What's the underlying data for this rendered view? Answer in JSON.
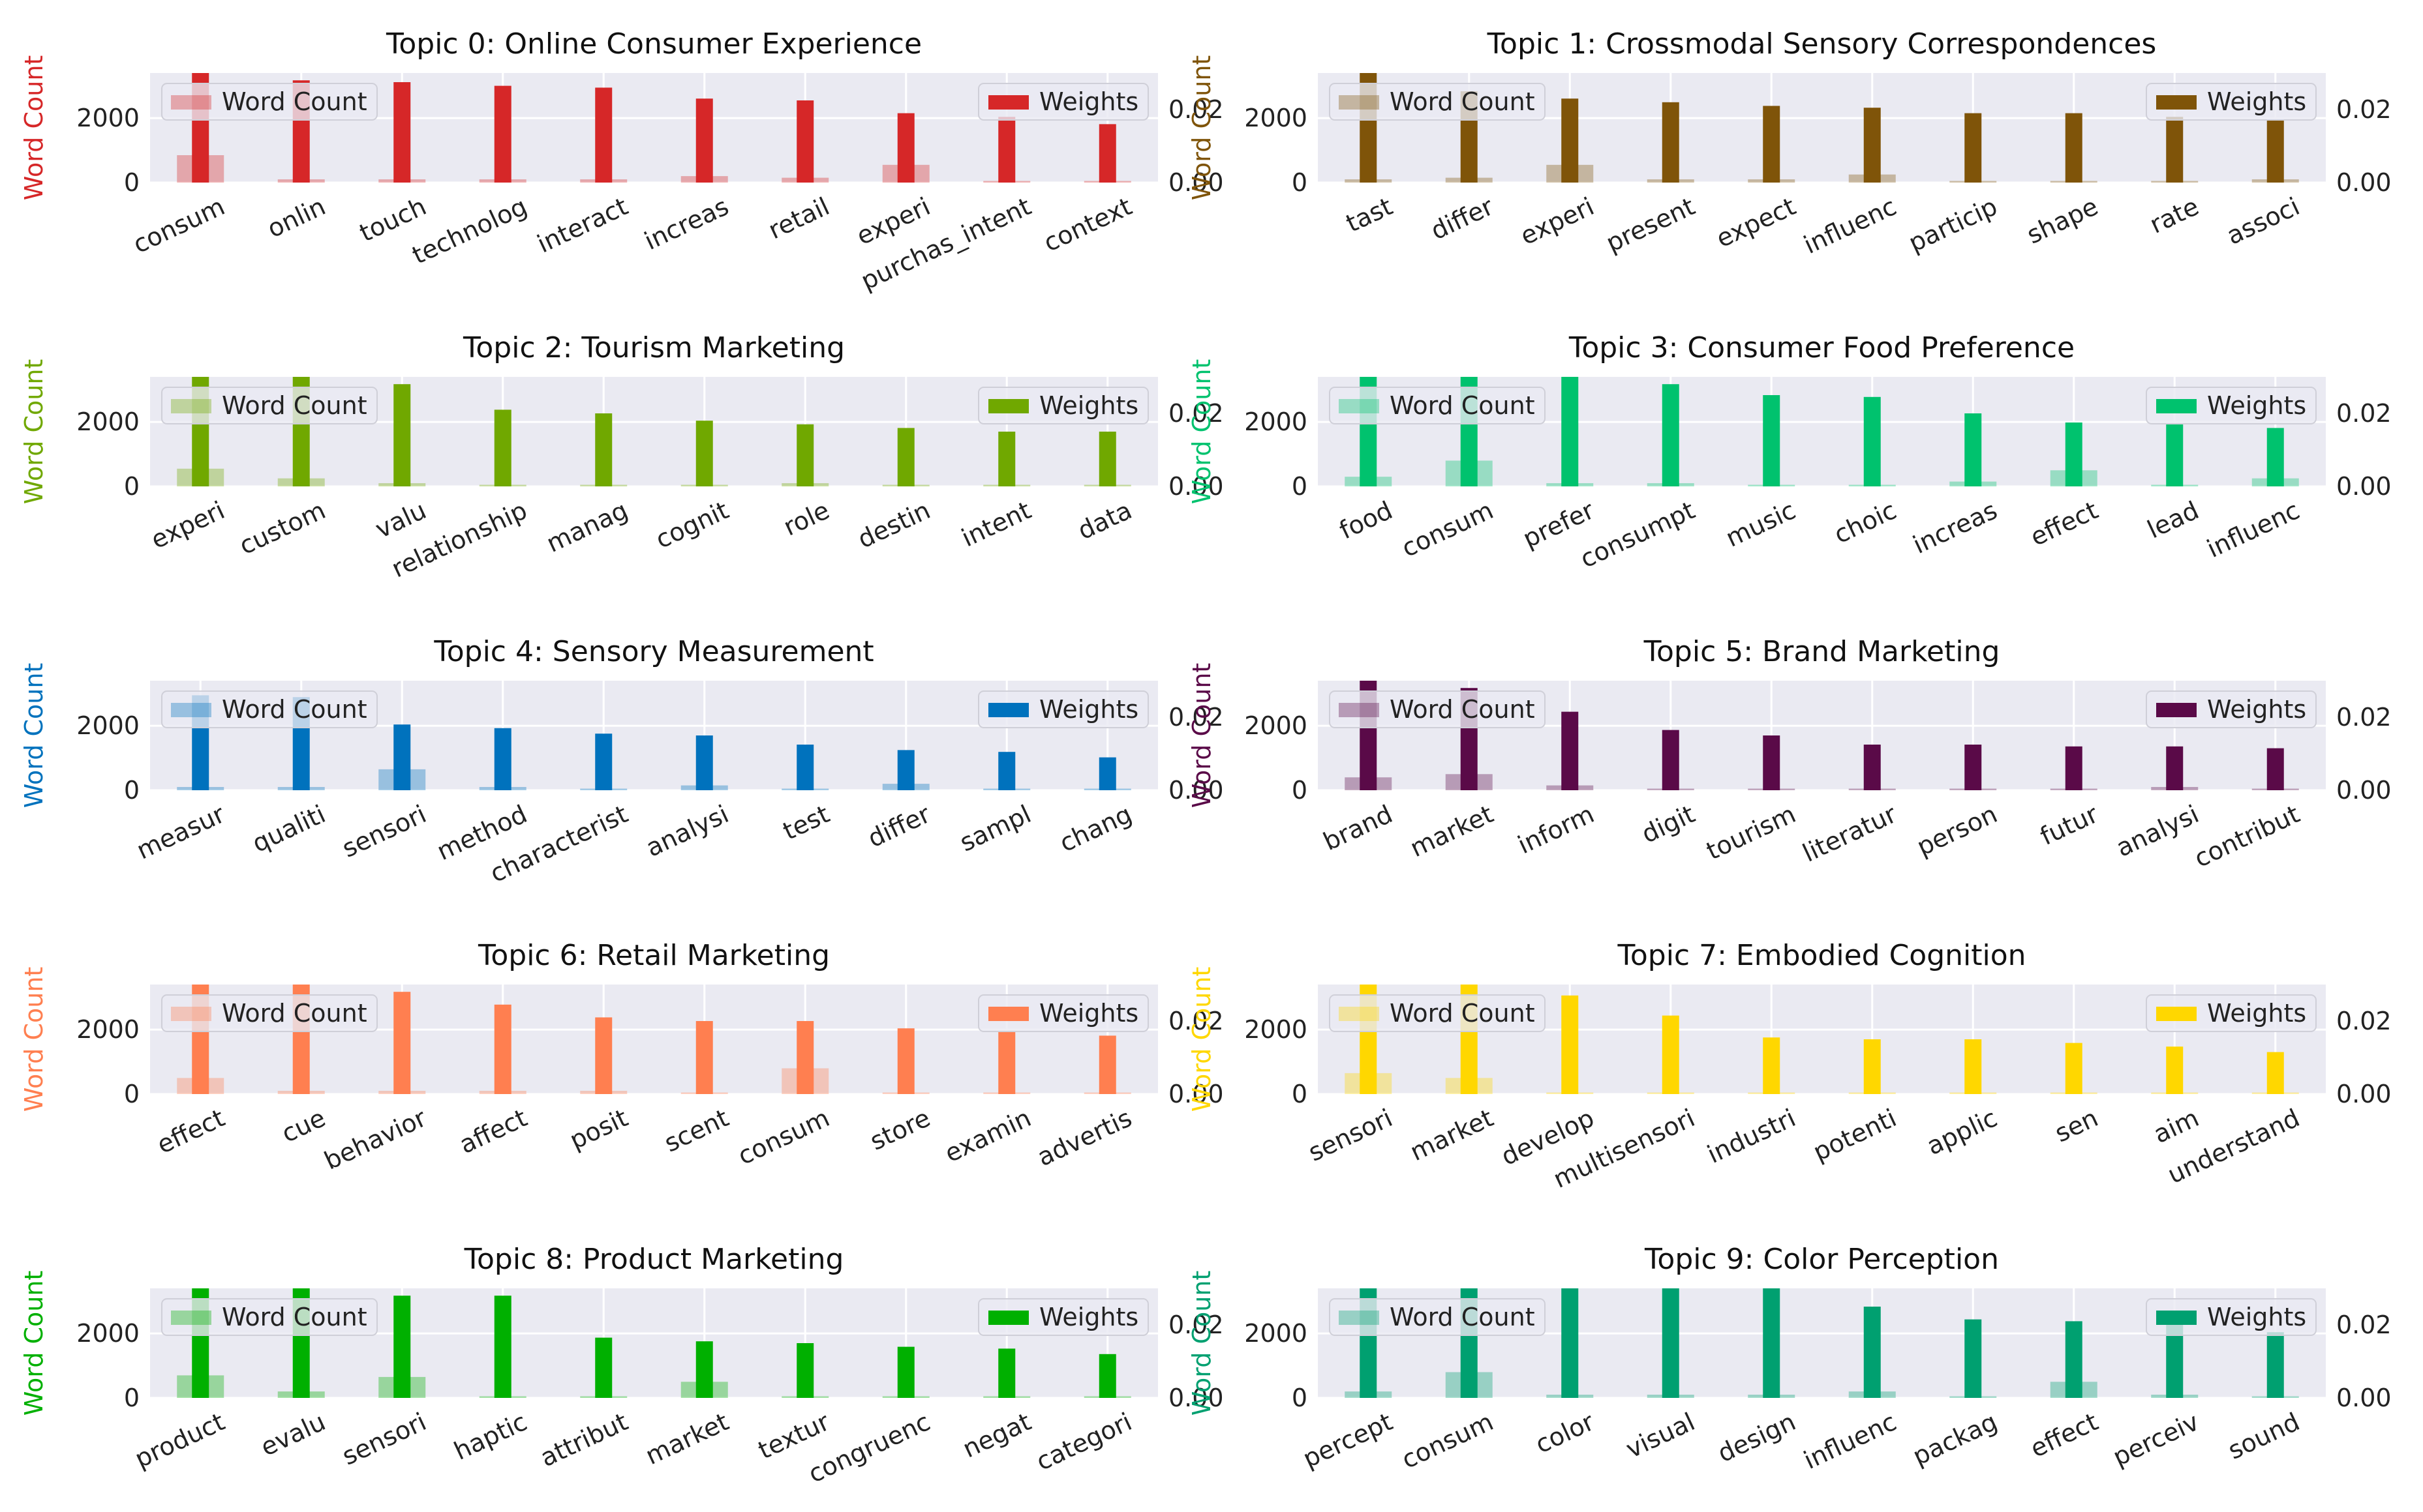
{
  "figure": {
    "left_axis_label": "Word Count",
    "right_axis_label_ticks": [
      "0.00",
      "0.02"
    ],
    "left_ticks": [
      "0",
      "2000"
    ]
  },
  "legend": {
    "word_count": "Word Count",
    "weights": "Weights"
  },
  "chart_data": [
    {
      "type": "bar",
      "title": "Topic 0: Online Consumer Experience",
      "color": "#d62728",
      "categories": [
        "consum",
        "onlin",
        "touch",
        "technolog",
        "interact",
        "increas",
        "retail",
        "experi",
        "purchas_intent",
        "context"
      ],
      "series": [
        {
          "name": "Word Count",
          "axis": "left",
          "values": [
            850,
            100,
            100,
            100,
            100,
            200,
            150,
            550,
            50,
            50
          ]
        },
        {
          "name": "Weights",
          "axis": "right",
          "values": [
            0.03,
            0.028,
            0.0275,
            0.0265,
            0.026,
            0.023,
            0.0225,
            0.019,
            0.018,
            0.016
          ]
        }
      ],
      "ylim_left": [
        0,
        3400
      ],
      "ylim_right": [
        0,
        0.03
      ],
      "yticks_left": [
        0,
        2000
      ],
      "yticks_right": [
        0.0,
        0.02
      ],
      "ylabel": "Word Count",
      "legend": [
        "top-left",
        "top-right"
      ],
      "grid": true
    },
    {
      "type": "bar",
      "title": "Topic 1: Crossmodal Sensory Correspondences",
      "color": "#7f5409",
      "categories": [
        "tast",
        "differ",
        "experi",
        "present",
        "expect",
        "influenc",
        "particip",
        "shape",
        "rate",
        "associ"
      ],
      "series": [
        {
          "name": "Word Count",
          "axis": "left",
          "values": [
            100,
            150,
            550,
            100,
            100,
            250,
            50,
            50,
            50,
            100
          ]
        },
        {
          "name": "Weights",
          "axis": "right",
          "values": [
            0.03,
            0.025,
            0.023,
            0.022,
            0.021,
            0.0205,
            0.019,
            0.019,
            0.018,
            0.017
          ]
        }
      ],
      "ylim_left": [
        0,
        3400
      ],
      "ylim_right": [
        0,
        0.03
      ],
      "yticks_left": [
        0,
        2000
      ],
      "yticks_right": [
        0.0,
        0.02
      ],
      "ylabel": "Word Count",
      "legend": [
        "top-left",
        "top-right"
      ],
      "grid": true
    },
    {
      "type": "bar",
      "title": "Topic 2: Tourism Marketing",
      "color": "#70a800",
      "categories": [
        "experi",
        "custom",
        "valu",
        "relationship",
        "manag",
        "cognit",
        "role",
        "destin",
        "intent",
        "data"
      ],
      "series": [
        {
          "name": "Word Count",
          "axis": "left",
          "values": [
            550,
            250,
            100,
            50,
            50,
            50,
            100,
            50,
            50,
            50
          ]
        },
        {
          "name": "Weights",
          "axis": "right",
          "values": [
            0.03,
            0.03,
            0.028,
            0.021,
            0.02,
            0.018,
            0.017,
            0.016,
            0.015,
            0.015
          ]
        }
      ],
      "ylim_left": [
        0,
        3400
      ],
      "ylim_right": [
        0,
        0.03
      ],
      "yticks_left": [
        0,
        2000
      ],
      "yticks_right": [
        0.0,
        0.02
      ],
      "ylabel": "Word Count",
      "legend": [
        "top-left",
        "top-right"
      ],
      "grid": true
    },
    {
      "type": "bar",
      "title": "Topic 3: Consumer Food Preference",
      "color": "#00c26e",
      "categories": [
        "food",
        "consum",
        "prefer",
        "consumpt",
        "music",
        "choic",
        "increas",
        "effect",
        "lead",
        "influenc"
      ],
      "series": [
        {
          "name": "Word Count",
          "axis": "left",
          "values": [
            300,
            800,
            100,
            100,
            50,
            50,
            150,
            500,
            50,
            250
          ]
        },
        {
          "name": "Weights",
          "axis": "right",
          "values": [
            0.03,
            0.03,
            0.03,
            0.028,
            0.025,
            0.0245,
            0.02,
            0.0175,
            0.017,
            0.016
          ]
        }
      ],
      "ylim_left": [
        0,
        3400
      ],
      "ylim_right": [
        0,
        0.03
      ],
      "yticks_left": [
        0,
        2000
      ],
      "yticks_right": [
        0.0,
        0.02
      ],
      "ylabel": "Word Count",
      "legend": [
        "top-left",
        "top-right"
      ],
      "grid": true
    },
    {
      "type": "bar",
      "title": "Topic 4: Sensory Measurement",
      "color": "#0072bd",
      "categories": [
        "measur",
        "qualiti",
        "sensori",
        "method",
        "characterist",
        "analysi",
        "test",
        "differ",
        "sampl",
        "chang"
      ],
      "series": [
        {
          "name": "Word Count",
          "axis": "left",
          "values": [
            100,
            100,
            650,
            100,
            50,
            150,
            50,
            200,
            50,
            50
          ]
        },
        {
          "name": "Weights",
          "axis": "right",
          "values": [
            0.026,
            0.0255,
            0.018,
            0.017,
            0.0155,
            0.015,
            0.0125,
            0.011,
            0.0105,
            0.009
          ]
        }
      ],
      "ylim_left": [
        0,
        3400
      ],
      "ylim_right": [
        0,
        0.03
      ],
      "yticks_left": [
        0,
        2000
      ],
      "yticks_right": [
        0.0,
        0.02
      ],
      "ylabel": "Word Count",
      "legend": [
        "top-left",
        "top-right"
      ],
      "grid": true
    },
    {
      "type": "bar",
      "title": "Topic 5: Brand Marketing",
      "color": "#5a0a48",
      "categories": [
        "brand",
        "market",
        "inform",
        "digit",
        "tourism",
        "literatur",
        "person",
        "futur",
        "analysi",
        "contribut"
      ],
      "series": [
        {
          "name": "Word Count",
          "axis": "left",
          "values": [
            400,
            500,
            150,
            50,
            50,
            50,
            50,
            50,
            100,
            50
          ]
        },
        {
          "name": "Weights",
          "axis": "right",
          "values": [
            0.03,
            0.028,
            0.0215,
            0.0165,
            0.015,
            0.0125,
            0.0125,
            0.012,
            0.012,
            0.0115
          ]
        }
      ],
      "ylim_left": [
        0,
        3400
      ],
      "ylim_right": [
        0,
        0.03
      ],
      "yticks_left": [
        0,
        2000
      ],
      "yticks_right": [
        0.0,
        0.02
      ],
      "ylabel": "Word Count",
      "legend": [
        "top-left",
        "top-right"
      ],
      "grid": true
    },
    {
      "type": "bar",
      "title": "Topic 6: Retail Marketing",
      "color": "#ff7f50",
      "categories": [
        "effect",
        "cue",
        "behavior",
        "affect",
        "posit",
        "scent",
        "consum",
        "store",
        "examin",
        "advertis"
      ],
      "series": [
        {
          "name": "Word Count",
          "axis": "left",
          "values": [
            500,
            100,
            100,
            100,
            100,
            50,
            800,
            50,
            50,
            50
          ]
        },
        {
          "name": "Weights",
          "axis": "right",
          "values": [
            0.03,
            0.03,
            0.028,
            0.0245,
            0.021,
            0.02,
            0.02,
            0.018,
            0.017,
            0.016
          ]
        }
      ],
      "ylim_left": [
        0,
        3400
      ],
      "ylim_right": [
        0,
        0.03
      ],
      "yticks_left": [
        0,
        2000
      ],
      "yticks_right": [
        0.0,
        0.02
      ],
      "ylabel": "Word Count",
      "legend": [
        "top-left",
        "top-right"
      ],
      "grid": true
    },
    {
      "type": "bar",
      "title": "Topic 7: Embodied Cognition",
      "color": "#ffd700",
      "categories": [
        "sensori",
        "market",
        "develop",
        "multisensori",
        "industri",
        "potenti",
        "applic",
        "sen",
        "aim",
        "understand"
      ],
      "series": [
        {
          "name": "Word Count",
          "axis": "left",
          "values": [
            650,
            500,
            50,
            50,
            50,
            50,
            50,
            50,
            50,
            50
          ]
        },
        {
          "name": "Weights",
          "axis": "right",
          "values": [
            0.03,
            0.03,
            0.027,
            0.0215,
            0.0155,
            0.015,
            0.015,
            0.014,
            0.013,
            0.0115
          ]
        }
      ],
      "ylim_left": [
        0,
        3400
      ],
      "ylim_right": [
        0,
        0.03
      ],
      "yticks_left": [
        0,
        2000
      ],
      "yticks_right": [
        0.0,
        0.02
      ],
      "ylabel": "Word Count",
      "legend": [
        "top-left",
        "top-right"
      ],
      "grid": true
    },
    {
      "type": "bar",
      "title": "Topic 8: Product Marketing",
      "color": "#00b000",
      "categories": [
        "product",
        "evalu",
        "sensori",
        "haptic",
        "attribut",
        "market",
        "textur",
        "congruenc",
        "negat",
        "categori"
      ],
      "series": [
        {
          "name": "Word Count",
          "axis": "left",
          "values": [
            700,
            200,
            650,
            50,
            50,
            500,
            50,
            50,
            50,
            50
          ]
        },
        {
          "name": "Weights",
          "axis": "right",
          "values": [
            0.03,
            0.03,
            0.028,
            0.028,
            0.0165,
            0.0155,
            0.015,
            0.014,
            0.0135,
            0.012
          ]
        }
      ],
      "ylim_left": [
        0,
        3400
      ],
      "ylim_right": [
        0,
        0.03
      ],
      "yticks_left": [
        0,
        2000
      ],
      "yticks_right": [
        0.0,
        0.02
      ],
      "ylabel": "Word Count",
      "legend": [
        "top-left",
        "top-right"
      ],
      "grid": true
    },
    {
      "type": "bar",
      "title": "Topic 9: Color Perception",
      "color": "#00a070",
      "categories": [
        "percept",
        "consum",
        "color",
        "visual",
        "design",
        "influenc",
        "packag",
        "effect",
        "perceiv",
        "sound"
      ],
      "series": [
        {
          "name": "Word Count",
          "axis": "left",
          "values": [
            200,
            800,
            100,
            100,
            100,
            200,
            50,
            500,
            100,
            50
          ]
        },
        {
          "name": "Weights",
          "axis": "right",
          "values": [
            0.03,
            0.03,
            0.03,
            0.03,
            0.03,
            0.025,
            0.0215,
            0.021,
            0.02,
            0.018
          ]
        }
      ],
      "ylim_left": [
        0,
        3400
      ],
      "ylim_right": [
        0,
        0.03
      ],
      "yticks_left": [
        0,
        2000
      ],
      "yticks_right": [
        0.0,
        0.02
      ],
      "ylabel": "Word Count",
      "legend": [
        "top-left",
        "top-right"
      ],
      "grid": true
    }
  ]
}
